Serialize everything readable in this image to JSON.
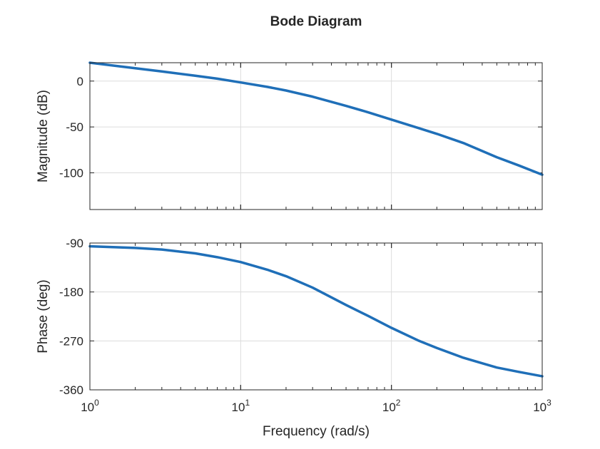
{
  "chart_data": {
    "type": "line",
    "title": "Bode Diagram",
    "xlabel": "Frequency (rad/s)",
    "x_scale": "log",
    "xlim": [
      1,
      1000
    ],
    "x_ticks": [
      {
        "value": 1,
        "base": "10",
        "exp": "0"
      },
      {
        "value": 10,
        "base": "10",
        "exp": "1"
      },
      {
        "value": 100,
        "base": "10",
        "exp": "2"
      },
      {
        "value": 1000,
        "base": "10",
        "exp": "3"
      }
    ],
    "line_color": "#1f6fb8",
    "grid": true,
    "panels": [
      {
        "name": "magnitude",
        "ylabel": "Magnitude (dB)",
        "ylim": [
          -140,
          20
        ],
        "y_ticks": [
          0,
          -50,
          -100
        ],
        "y_tick_labels": [
          "0",
          "-50",
          "-100"
        ],
        "series": {
          "name": "Magnitude",
          "x": [
            1,
            2,
            3,
            5,
            7,
            10,
            15,
            20,
            30,
            50,
            70,
            100,
            150,
            200,
            300,
            500,
            700,
            1000
          ],
          "y": [
            20,
            14,
            10.5,
            5.8,
            2.6,
            -1.5,
            -6.3,
            -10.3,
            -17,
            -27,
            -34,
            -42,
            -51,
            -57.5,
            -67.5,
            -83,
            -92,
            -102
          ]
        }
      },
      {
        "name": "phase",
        "ylabel": "Phase (deg)",
        "ylim": [
          -360,
          -90
        ],
        "y_ticks": [
          -90,
          -180,
          -270,
          -360
        ],
        "y_tick_labels": [
          "-90",
          "-180",
          "-270",
          "-360"
        ],
        "series": {
          "name": "Phase",
          "x": [
            1,
            2,
            3,
            5,
            7,
            10,
            15,
            20,
            30,
            50,
            70,
            100,
            150,
            200,
            300,
            500,
            700,
            1000
          ],
          "y": [
            -96,
            -99,
            -102,
            -109,
            -116,
            -125,
            -139,
            -151,
            -172,
            -204,
            -224,
            -246,
            -269,
            -283,
            -301,
            -319,
            -327,
            -335
          ]
        }
      }
    ]
  }
}
